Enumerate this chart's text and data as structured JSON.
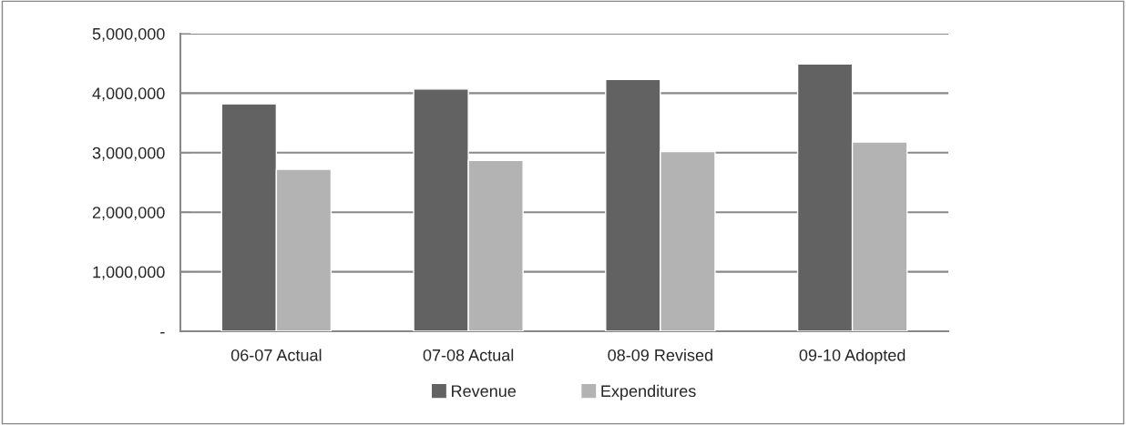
{
  "chart_data": {
    "type": "bar",
    "categories": [
      "06-07 Actual",
      "07-08 Actual",
      "08-09 Revised",
      "09-10 Adopted"
    ],
    "series": [
      {
        "name": "Revenue",
        "color": "#626262",
        "values": [
          3820000,
          4070000,
          4230000,
          4490000
        ]
      },
      {
        "name": "Expenditures",
        "color": "#b3b3b3",
        "values": [
          2720000,
          2870000,
          3020000,
          3180000
        ]
      }
    ],
    "ylim": [
      0,
      5000000
    ],
    "yticks": [
      {
        "value": 0,
        "label": "-"
      },
      {
        "value": 1000000,
        "label": "1,000,000"
      },
      {
        "value": 2000000,
        "label": "2,000,000"
      },
      {
        "value": 3000000,
        "label": "3,000,000"
      },
      {
        "value": 4000000,
        "label": "4,000,000"
      },
      {
        "value": 5000000,
        "label": "5,000,000"
      }
    ],
    "grid": "y",
    "legend": "bottom"
  }
}
